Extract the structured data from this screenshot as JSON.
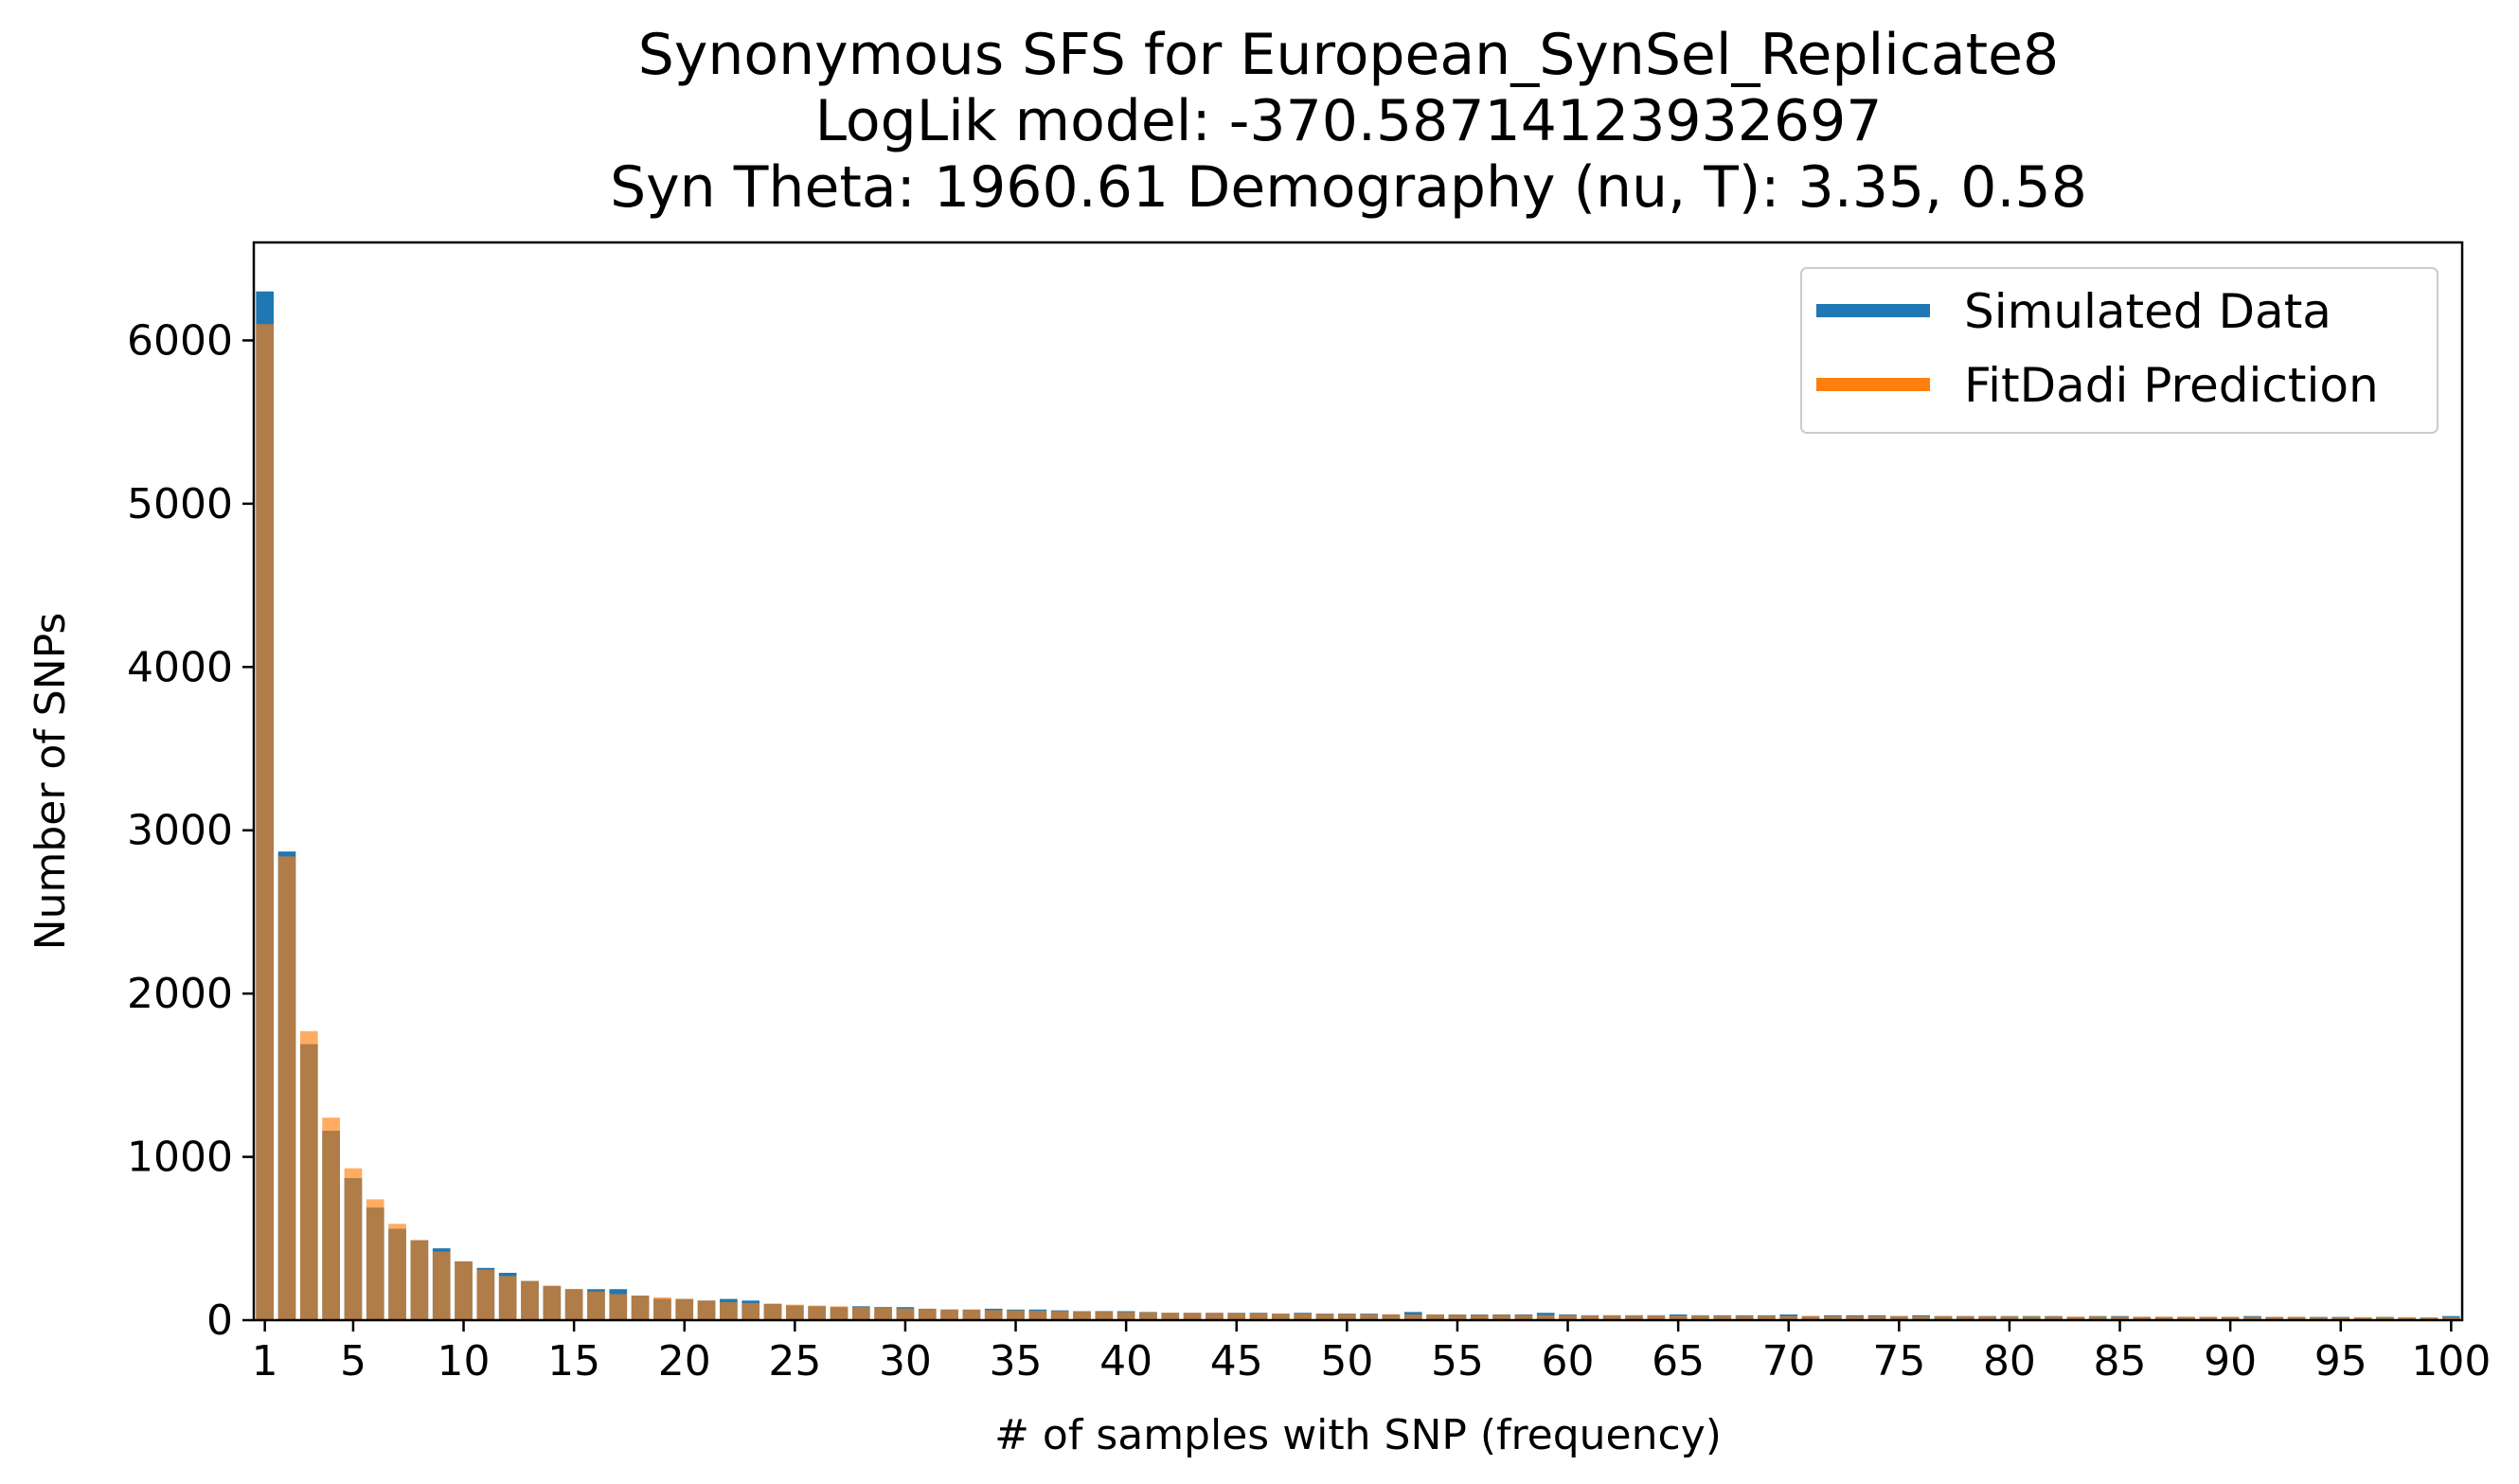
{
  "chart_data": {
    "type": "bar",
    "title_lines": [
      "Synonymous SFS for European_SynSel_Replicate8",
      "LogLik model: -370.58714123932697",
      "Syn Theta: 1960.61 Demography (nu, T): 3.35, 0.58"
    ],
    "xlabel": "# of samples with SNP (frequency)",
    "ylabel": "Number of SNPs",
    "xlim": [
      0.5,
      100.5
    ],
    "ylim": [
      0,
      6600
    ],
    "x_ticks": [
      1,
      5,
      10,
      15,
      20,
      25,
      30,
      35,
      40,
      45,
      50,
      55,
      60,
      65,
      70,
      75,
      80,
      85,
      90,
      95,
      100
    ],
    "y_ticks": [
      0,
      1000,
      2000,
      3000,
      4000,
      5000,
      6000
    ],
    "grid": false,
    "legend_position": "top-right",
    "x": [
      1,
      2,
      3,
      4,
      5,
      6,
      7,
      8,
      9,
      10,
      11,
      12,
      13,
      14,
      15,
      16,
      17,
      18,
      19,
      20,
      21,
      22,
      23,
      24,
      25,
      26,
      27,
      28,
      29,
      30,
      31,
      32,
      33,
      34,
      35,
      36,
      37,
      38,
      39,
      40,
      41,
      42,
      43,
      44,
      45,
      46,
      47,
      48,
      49,
      50,
      51,
      52,
      53,
      54,
      55,
      56,
      57,
      58,
      59,
      60,
      61,
      62,
      63,
      64,
      65,
      66,
      67,
      68,
      69,
      70,
      71,
      72,
      73,
      74,
      75,
      76,
      77,
      78,
      79,
      80,
      81,
      82,
      83,
      84,
      85,
      86,
      87,
      88,
      89,
      90,
      91,
      92,
      93,
      94,
      95,
      96,
      97,
      98,
      99,
      100
    ],
    "series": [
      {
        "name": "Simulated Data",
        "color": "#1f77b4",
        "values": [
          6300,
          2870,
          1690,
          1160,
          870,
          690,
          560,
          490,
          440,
          360,
          320,
          290,
          240,
          210,
          190,
          190,
          190,
          150,
          130,
          130,
          120,
          130,
          120,
          100,
          90,
          85,
          80,
          85,
          80,
          80,
          70,
          65,
          65,
          70,
          65,
          65,
          60,
          55,
          55,
          55,
          50,
          45,
          45,
          45,
          45,
          45,
          40,
          45,
          40,
          40,
          40,
          35,
          50,
          35,
          35,
          35,
          35,
          35,
          45,
          35,
          30,
          30,
          30,
          30,
          35,
          30,
          30,
          30,
          30,
          35,
          25,
          30,
          30,
          30,
          25,
          30,
          25,
          25,
          25,
          25,
          25,
          25,
          20,
          25,
          25,
          20,
          20,
          20,
          20,
          20,
          25,
          20,
          20,
          20,
          20,
          15,
          20,
          15,
          15,
          25
        ]
      },
      {
        "name": "FitDadi Prediction",
        "color": "#ff7f0e",
        "opacity": 0.65,
        "values": [
          6100,
          2840,
          1770,
          1240,
          930,
          740,
          590,
          490,
          420,
          360,
          310,
          270,
          240,
          210,
          190,
          175,
          160,
          150,
          140,
          130,
          120,
          110,
          105,
          100,
          95,
          90,
          85,
          80,
          75,
          72,
          70,
          66,
          64,
          62,
          60,
          58,
          56,
          54,
          52,
          50,
          48,
          46,
          45,
          44,
          43,
          42,
          41,
          40,
          39,
          38,
          37,
          36,
          35,
          35,
          34,
          33,
          33,
          32,
          31,
          31,
          30,
          30,
          29,
          29,
          28,
          28,
          27,
          27,
          27,
          26,
          26,
          25,
          25,
          25,
          24,
          24,
          24,
          23,
          23,
          23,
          22,
          22,
          22,
          22,
          21,
          21,
          21,
          21,
          20,
          20,
          20,
          20,
          20,
          19,
          19,
          19,
          19,
          19,
          18,
          18
        ]
      }
    ]
  }
}
